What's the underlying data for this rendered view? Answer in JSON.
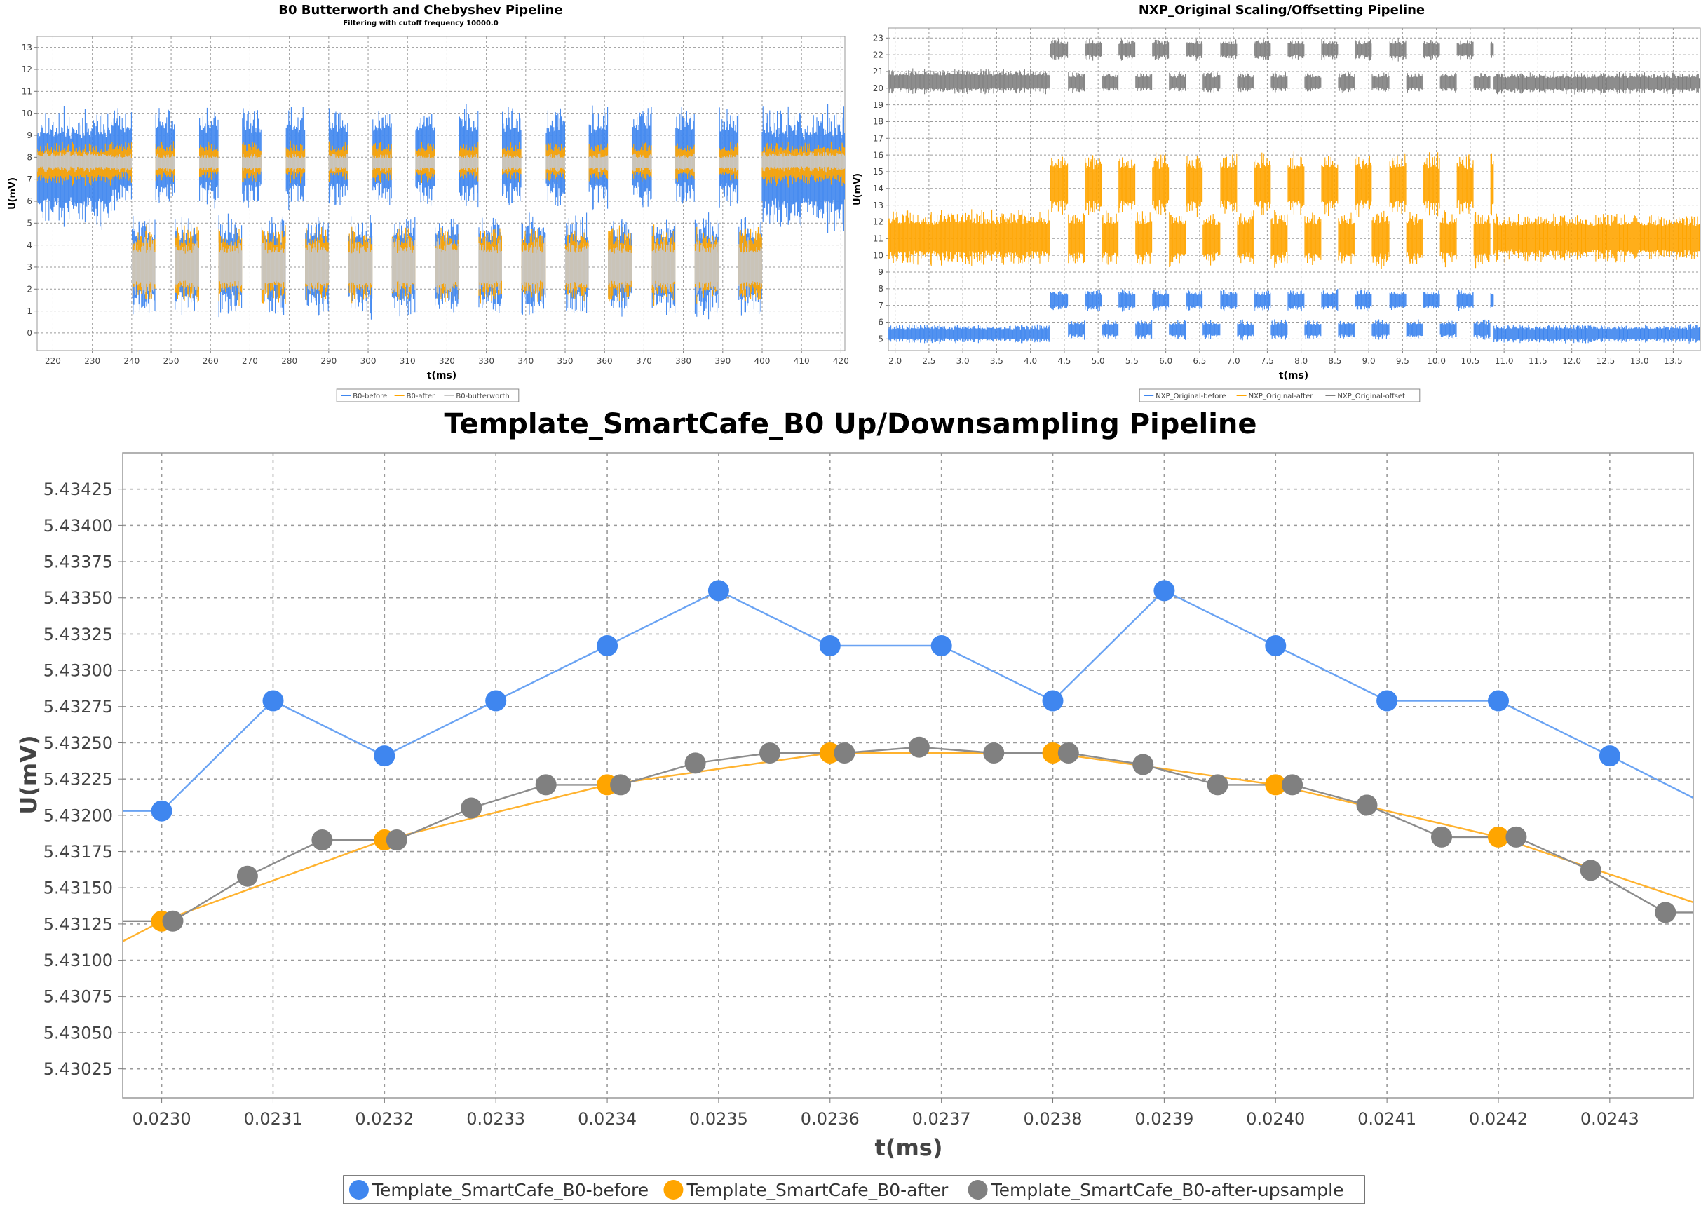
{
  "colors": {
    "blue": "#3f86ef",
    "orange": "#ffa500",
    "gray": "#808080",
    "line_blue": "#6aa3f3",
    "line_orange": "#ffb22e",
    "line_gray": "#8c8c8c",
    "grid": "#9a9a9a"
  },
  "chart_data": [
    {
      "type": "line",
      "title": "B0 Butterworth and Chebyshev Pipeline",
      "subtitle": "Filtering with cutoff frequency 10000.0",
      "xlabel": "t(ms)",
      "ylabel": "U(mV)",
      "xlim": [
        216,
        421
      ],
      "ylim": [
        -0.8,
        13.5
      ],
      "x_ticks": [
        220,
        230,
        240,
        250,
        260,
        270,
        280,
        290,
        300,
        310,
        320,
        330,
        340,
        350,
        360,
        370,
        380,
        390,
        400,
        410,
        420
      ],
      "y_ticks": [
        0,
        1,
        2,
        3,
        4,
        5,
        6,
        7,
        8,
        9,
        10,
        11,
        12,
        13
      ],
      "grid": true,
      "legend": "bottom",
      "series": [
        {
          "name": "B0-before",
          "color": "#3f86ef",
          "kind": "noise-band",
          "segments": [
            [
              216,
              235,
              4.5,
              10.5
            ],
            [
              400,
              421,
              4.5,
              10.5
            ]
          ],
          "alternating": {
            "start": 235,
            "end": 400,
            "period": 11,
            "high": [
              5.5,
              10.5
            ],
            "low": [
              0.6,
              5.5
            ],
            "duty": 0.45
          }
        },
        {
          "name": "B0-after",
          "color": "#ffa500",
          "kind": "noise-band",
          "segments": [
            [
              216,
              235,
              6.6,
              8.8
            ],
            [
              400,
              421,
              6.6,
              8.8
            ]
          ],
          "alternating": {
            "start": 235,
            "end": 400,
            "period": 11,
            "high": [
              6.8,
              8.8
            ],
            "low": [
              1.2,
              5.0
            ],
            "duty": 0.45
          }
        },
        {
          "name": "B0-butterworth",
          "color": "#c8c8c8",
          "kind": "noise-band",
          "segments": [
            [
              216,
              235,
              7.3,
              8.3
            ],
            [
              400,
              421,
              7.3,
              8.3
            ]
          ],
          "alternating": {
            "start": 235,
            "end": 400,
            "period": 11,
            "high": [
              7.3,
              8.2
            ],
            "low": [
              1.6,
              4.4
            ],
            "duty": 0.45
          }
        }
      ]
    },
    {
      "type": "line",
      "title": "NXP_Original Scaling/Offsetting Pipeline",
      "xlabel": "t(ms)",
      "ylabel": "U(mV)",
      "xlim": [
        1.9,
        13.9
      ],
      "ylim": [
        4.3,
        23.6
      ],
      "x_ticks": [
        2.0,
        2.5,
        3.0,
        3.5,
        4.0,
        4.5,
        5.0,
        5.5,
        6.0,
        6.5,
        7.0,
        7.5,
        8.0,
        8.5,
        9.0,
        9.5,
        10.0,
        10.5,
        11.0,
        11.5,
        12.0,
        12.5,
        13.0,
        13.5
      ],
      "x_tick_labels": [
        "2.0",
        "2.5",
        "3.0",
        "3.5",
        "4.0",
        "4.5",
        "5.0",
        "5.5",
        "6.0",
        "6.5",
        "7.0",
        "7.5",
        "8.0",
        "8.5",
        "9.0",
        "9.5",
        "10.0",
        "10.5",
        "11.0",
        "11.5",
        "12.0",
        "12.5",
        "13.0",
        "13.5"
      ],
      "y_ticks": [
        5,
        6,
        7,
        8,
        9,
        10,
        11,
        12,
        13,
        14,
        15,
        16,
        17,
        18,
        19,
        20,
        21,
        22,
        23
      ],
      "grid": true,
      "legend": "bottom",
      "series": [
        {
          "name": "NXP_Original-before",
          "color": "#3f86ef",
          "kind": "noise-band",
          "segments": [
            [
              1.9,
              4.3,
              4.7,
              5.9
            ],
            [
              10.85,
              13.9,
              4.7,
              5.9
            ]
          ],
          "alternating": {
            "start": 4.3,
            "end": 10.85,
            "period": 0.5,
            "high": [
              6.6,
              8.0
            ],
            "low": [
              4.9,
              6.2
            ],
            "duty": 0.5
          }
        },
        {
          "name": "NXP_Original-after",
          "color": "#ffa500",
          "kind": "noise-band",
          "segments": [
            [
              1.9,
              4.3,
              9.3,
              12.8
            ],
            [
              10.85,
              13.9,
              9.5,
              12.6
            ]
          ],
          "alternating": {
            "start": 4.3,
            "end": 10.85,
            "period": 0.5,
            "high": [
              12.2,
              16.3
            ],
            "low": [
              9.2,
              12.8
            ],
            "duty": 0.5
          }
        },
        {
          "name": "NXP_Original-offset",
          "color": "#808080",
          "kind": "noise-band",
          "segments": [
            [
              1.9,
              4.3,
              19.6,
              21.2
            ],
            [
              10.85,
              13.9,
              19.6,
              21.0
            ]
          ],
          "alternating": {
            "start": 4.3,
            "end": 10.85,
            "period": 0.5,
            "high": [
              21.6,
              23.0
            ],
            "low": [
              19.7,
              21.0
            ],
            "duty": 0.5
          }
        }
      ]
    },
    {
      "type": "line",
      "title": "Template_SmartCafe_B0 Up/Downsampling Pipeline",
      "xlabel": "t(ms)",
      "ylabel": "U(mV)",
      "xlim": [
        0.022965,
        0.024375
      ],
      "ylim": [
        5.43005,
        5.4345
      ],
      "x_ticks": [
        0.023,
        0.0231,
        0.0232,
        0.0233,
        0.0234,
        0.0235,
        0.0236,
        0.0237,
        0.0238,
        0.0239,
        0.024,
        0.0241,
        0.0242,
        0.0243
      ],
      "x_tick_labels": [
        "0.0230",
        "0.0231",
        "0.0232",
        "0.0233",
        "0.0234",
        "0.0235",
        "0.0236",
        "0.0237",
        "0.0238",
        "0.0239",
        "0.0240",
        "0.0241",
        "0.0242",
        "0.0243"
      ],
      "y_ticks": [
        5.43025,
        5.4305,
        5.43075,
        5.431,
        5.43125,
        5.4315,
        5.43175,
        5.432,
        5.43225,
        5.4325,
        5.43275,
        5.433,
        5.43325,
        5.4335,
        5.43375,
        5.434,
        5.43425
      ],
      "y_tick_labels": [
        "5.43025",
        "5.43050",
        "5.43075",
        "5.43100",
        "5.43125",
        "5.43150",
        "5.43175",
        "5.43200",
        "5.43225",
        "5.43250",
        "5.43275",
        "5.43300",
        "5.43325",
        "5.43350",
        "5.43375",
        "5.43400",
        "5.43425"
      ],
      "grid": true,
      "legend": "bottom",
      "series": [
        {
          "name": "Template_SmartCafe_B0-before",
          "color": "#3f86ef",
          "line_from": [
            0.022965,
            5.43203
          ],
          "line_to": [
            0.024375,
            5.43212
          ],
          "points": [
            [
              0.023,
              5.43203
            ],
            [
              0.0231,
              5.43279
            ],
            [
              0.0232,
              5.43241
            ],
            [
              0.0233,
              5.43279
            ],
            [
              0.0234,
              5.43317
            ],
            [
              0.0235,
              5.43355
            ],
            [
              0.0236,
              5.43317
            ],
            [
              0.0237,
              5.43317
            ],
            [
              0.0238,
              5.43279
            ],
            [
              0.0239,
              5.43355
            ],
            [
              0.024,
              5.43317
            ],
            [
              0.0241,
              5.43279
            ],
            [
              0.0242,
              5.43279
            ],
            [
              0.0243,
              5.43241
            ]
          ]
        },
        {
          "name": "Template_SmartCafe_B0-after",
          "color": "#ffa500",
          "line_from": [
            0.022965,
            5.43113
          ],
          "line_to": [
            0.024375,
            5.4314
          ],
          "points": [
            [
              0.023,
              5.43127
            ],
            [
              0.0232,
              5.43183
            ],
            [
              0.0234,
              5.43221
            ],
            [
              0.0236,
              5.43243
            ],
            [
              0.0238,
              5.43243
            ],
            [
              0.024,
              5.43221
            ],
            [
              0.0242,
              5.43185
            ]
          ]
        },
        {
          "name": "Template_SmartCafe_B0-after-upsample",
          "color": "#808080",
          "line_from": [
            0.022965,
            5.43127
          ],
          "line_to": [
            0.024375,
            5.43133
          ],
          "points": [
            [
              0.02301,
              5.43127
            ],
            [
              0.023077,
              5.43158
            ],
            [
              0.023144,
              5.43183
            ],
            [
              0.023211,
              5.43183
            ],
            [
              0.023278,
              5.43205
            ],
            [
              0.023345,
              5.43221
            ],
            [
              0.023412,
              5.43221
            ],
            [
              0.023479,
              5.43236
            ],
            [
              0.023546,
              5.43243
            ],
            [
              0.023613,
              5.43243
            ],
            [
              0.02368,
              5.43247
            ],
            [
              0.023747,
              5.43243
            ],
            [
              0.023814,
              5.43243
            ],
            [
              0.023881,
              5.43235
            ],
            [
              0.023948,
              5.43221
            ],
            [
              0.024015,
              5.43221
            ],
            [
              0.024082,
              5.43207
            ],
            [
              0.024149,
              5.43185
            ],
            [
              0.024216,
              5.43185
            ],
            [
              0.024283,
              5.43162
            ],
            [
              0.02435,
              5.43133
            ]
          ]
        }
      ]
    }
  ]
}
